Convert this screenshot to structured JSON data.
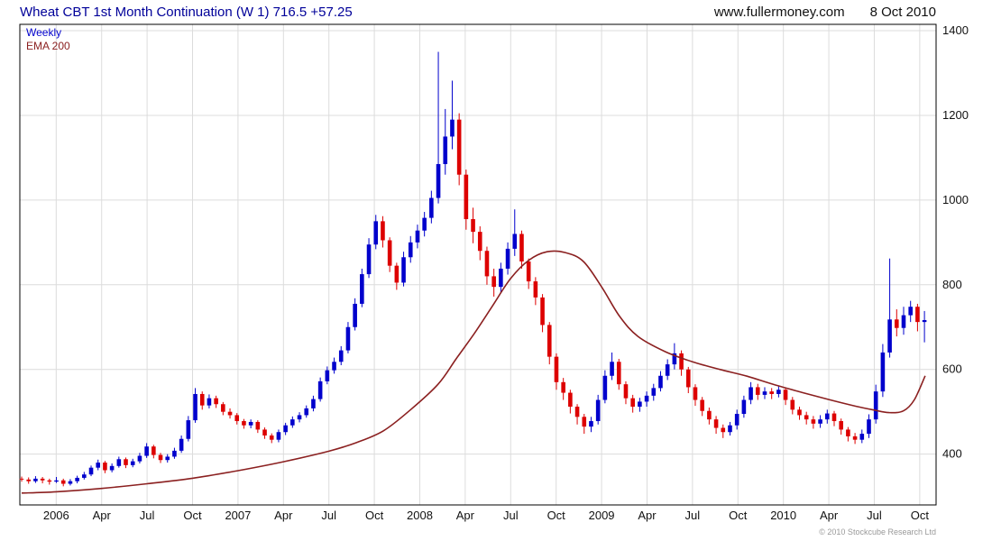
{
  "header": {
    "title": "Wheat CBT 1st Month Continuation (W 1) 716.5 +57.25",
    "website": "www.fullermoney.com",
    "date": "8 Oct 2010"
  },
  "legend": {
    "series1": "Weekly",
    "series2": "EMA 200"
  },
  "footer": {
    "copyright": "© 2010 Stockcube Research Ltd"
  },
  "colors": {
    "up": "#0000cc",
    "down": "#dd0000",
    "ema": "#8b2020",
    "grid": "#dcdcdc",
    "border": "#000000",
    "label": "#111111",
    "title": "#000099"
  },
  "chart_data": {
    "type": "candlestick",
    "title": "Wheat CBT 1st Month Continuation (W 1)",
    "instrument": "Wheat CBT 1st Month Continuation",
    "timeframe": "Weekly",
    "last_price": 716.5,
    "change": "+57.25",
    "legend_position": "top-left",
    "grid": true,
    "x_range": [
      2005.8,
      2010.84
    ],
    "y_range": [
      280,
      1415
    ],
    "y_ticks": [
      400,
      600,
      800,
      1000,
      1200,
      1400
    ],
    "x_ticks": [
      {
        "x": 2006.0,
        "label": "2006"
      },
      {
        "x": 2006.25,
        "label": "Apr"
      },
      {
        "x": 2006.5,
        "label": "Jul"
      },
      {
        "x": 2006.75,
        "label": "Oct"
      },
      {
        "x": 2007.0,
        "label": "2007"
      },
      {
        "x": 2007.25,
        "label": "Apr"
      },
      {
        "x": 2007.5,
        "label": "Jul"
      },
      {
        "x": 2007.75,
        "label": "Oct"
      },
      {
        "x": 2008.0,
        "label": "2008"
      },
      {
        "x": 2008.25,
        "label": "Apr"
      },
      {
        "x": 2008.5,
        "label": "Jul"
      },
      {
        "x": 2008.75,
        "label": "Oct"
      },
      {
        "x": 2009.0,
        "label": "2009"
      },
      {
        "x": 2009.25,
        "label": "Apr"
      },
      {
        "x": 2009.5,
        "label": "Jul"
      },
      {
        "x": 2009.75,
        "label": "Oct"
      },
      {
        "x": 2010.0,
        "label": "2010"
      },
      {
        "x": 2010.25,
        "label": "Apr"
      },
      {
        "x": 2010.5,
        "label": "Jul"
      },
      {
        "x": 2010.75,
        "label": "Oct"
      }
    ],
    "x_start": 2005.81,
    "x_step": 0.0382,
    "candles_ohlc": [
      [
        342,
        347,
        335,
        340
      ],
      [
        340,
        345,
        330,
        336
      ],
      [
        336,
        348,
        332,
        342
      ],
      [
        342,
        346,
        331,
        338
      ],
      [
        338,
        342,
        328,
        335
      ],
      [
        335,
        346,
        332,
        338
      ],
      [
        338,
        342,
        324,
        330
      ],
      [
        330,
        341,
        326,
        336
      ],
      [
        336,
        349,
        331,
        344
      ],
      [
        344,
        358,
        340,
        352
      ],
      [
        352,
        373,
        348,
        368
      ],
      [
        368,
        387,
        362,
        380
      ],
      [
        380,
        384,
        355,
        362
      ],
      [
        362,
        378,
        357,
        372
      ],
      [
        372,
        394,
        368,
        388
      ],
      [
        388,
        392,
        367,
        374
      ],
      [
        374,
        389,
        369,
        383
      ],
      [
        383,
        403,
        378,
        396
      ],
      [
        396,
        426,
        391,
        418
      ],
      [
        418,
        422,
        390,
        398
      ],
      [
        398,
        403,
        379,
        386
      ],
      [
        386,
        400,
        380,
        394
      ],
      [
        394,
        415,
        389,
        408
      ],
      [
        408,
        444,
        403,
        436
      ],
      [
        436,
        490,
        430,
        480
      ],
      [
        480,
        556,
        474,
        542
      ],
      [
        542,
        548,
        505,
        515
      ],
      [
        515,
        541,
        508,
        532
      ],
      [
        532,
        538,
        509,
        518
      ],
      [
        518,
        523,
        492,
        500
      ],
      [
        500,
        508,
        484,
        492
      ],
      [
        492,
        497,
        470,
        478
      ],
      [
        478,
        483,
        460,
        468
      ],
      [
        468,
        482,
        461,
        476
      ],
      [
        476,
        480,
        450,
        458
      ],
      [
        458,
        463,
        436,
        444
      ],
      [
        444,
        449,
        426,
        434
      ],
      [
        434,
        458,
        428,
        452
      ],
      [
        452,
        474,
        445,
        468
      ],
      [
        468,
        489,
        462,
        482
      ],
      [
        482,
        499,
        475,
        492
      ],
      [
        492,
        515,
        486,
        508
      ],
      [
        508,
        538,
        501,
        530
      ],
      [
        530,
        581,
        524,
        572
      ],
      [
        572,
        607,
        565,
        598
      ],
      [
        598,
        628,
        590,
        618
      ],
      [
        618,
        655,
        610,
        645
      ],
      [
        645,
        712,
        638,
        700
      ],
      [
        700,
        768,
        692,
        755
      ],
      [
        755,
        838,
        747,
        825
      ],
      [
        825,
        910,
        816,
        895
      ],
      [
        895,
        965,
        884,
        950
      ],
      [
        950,
        962,
        888,
        905
      ],
      [
        905,
        912,
        830,
        845
      ],
      [
        845,
        852,
        788,
        805
      ],
      [
        805,
        878,
        796,
        865
      ],
      [
        865,
        915,
        852,
        900
      ],
      [
        900,
        942,
        886,
        928
      ],
      [
        928,
        972,
        914,
        958
      ],
      [
        958,
        1022,
        945,
        1005
      ],
      [
        1005,
        1350,
        992,
        1085
      ],
      [
        1085,
        1215,
        1060,
        1150
      ],
      [
        1150,
        1282,
        1120,
        1190
      ],
      [
        1190,
        1205,
        1035,
        1060
      ],
      [
        1060,
        1072,
        930,
        955
      ],
      [
        955,
        982,
        898,
        925
      ],
      [
        925,
        938,
        858,
        880
      ],
      [
        880,
        890,
        800,
        820
      ],
      [
        820,
        838,
        772,
        795
      ],
      [
        795,
        852,
        782,
        838
      ],
      [
        838,
        900,
        824,
        885
      ],
      [
        885,
        978,
        868,
        920
      ],
      [
        920,
        928,
        838,
        855
      ],
      [
        855,
        862,
        790,
        808
      ],
      [
        808,
        818,
        752,
        770
      ],
      [
        770,
        778,
        688,
        705
      ],
      [
        705,
        712,
        612,
        630
      ],
      [
        630,
        638,
        552,
        570
      ],
      [
        570,
        580,
        528,
        545
      ],
      [
        545,
        552,
        496,
        512
      ],
      [
        512,
        518,
        470,
        488
      ],
      [
        488,
        495,
        448,
        465
      ],
      [
        465,
        488,
        452,
        478
      ],
      [
        478,
        540,
        470,
        528
      ],
      [
        528,
        598,
        520,
        585
      ],
      [
        585,
        640,
        575,
        618
      ],
      [
        618,
        625,
        552,
        565
      ],
      [
        565,
        572,
        518,
        532
      ],
      [
        532,
        540,
        498,
        512
      ],
      [
        512,
        533,
        500,
        524
      ],
      [
        524,
        548,
        512,
        538
      ],
      [
        538,
        566,
        526,
        556
      ],
      [
        556,
        596,
        548,
        585
      ],
      [
        585,
        624,
        575,
        612
      ],
      [
        612,
        662,
        600,
        638
      ],
      [
        638,
        645,
        585,
        600
      ],
      [
        600,
        606,
        544,
        558
      ],
      [
        558,
        565,
        514,
        528
      ],
      [
        528,
        535,
        490,
        502
      ],
      [
        502,
        510,
        470,
        482
      ],
      [
        482,
        490,
        448,
        462
      ],
      [
        462,
        470,
        438,
        452
      ],
      [
        452,
        476,
        444,
        468
      ],
      [
        468,
        505,
        458,
        495
      ],
      [
        495,
        538,
        486,
        528
      ],
      [
        528,
        570,
        518,
        558
      ],
      [
        558,
        566,
        528,
        540
      ],
      [
        540,
        558,
        530,
        548
      ],
      [
        548,
        556,
        530,
        542
      ],
      [
        542,
        562,
        534,
        552
      ],
      [
        552,
        558,
        516,
        528
      ],
      [
        528,
        535,
        494,
        505
      ],
      [
        505,
        512,
        481,
        492
      ],
      [
        492,
        500,
        470,
        482
      ],
      [
        482,
        490,
        460,
        472
      ],
      [
        472,
        492,
        462,
        482
      ],
      [
        482,
        505,
        472,
        496
      ],
      [
        496,
        502,
        466,
        478
      ],
      [
        478,
        484,
        446,
        458
      ],
      [
        458,
        464,
        430,
        442
      ],
      [
        442,
        450,
        424,
        434
      ],
      [
        434,
        458,
        426,
        448
      ],
      [
        448,
        494,
        438,
        482
      ],
      [
        482,
        564,
        472,
        548
      ],
      [
        548,
        660,
        535,
        640
      ],
      [
        640,
        862,
        628,
        718
      ],
      [
        718,
        742,
        678,
        698
      ],
      [
        698,
        748,
        682,
        728
      ],
      [
        728,
        762,
        712,
        748
      ],
      [
        748,
        755,
        690,
        712
      ],
      [
        712,
        738,
        664,
        716.5
      ]
    ],
    "ema200": [
      [
        2005.81,
        308
      ],
      [
        2006.0,
        311
      ],
      [
        2006.25,
        319
      ],
      [
        2006.5,
        330
      ],
      [
        2006.75,
        343
      ],
      [
        2007.0,
        361
      ],
      [
        2007.25,
        382
      ],
      [
        2007.5,
        407
      ],
      [
        2007.65,
        427
      ],
      [
        2007.8,
        455
      ],
      [
        2007.95,
        505
      ],
      [
        2008.1,
        565
      ],
      [
        2008.2,
        625
      ],
      [
        2008.3,
        685
      ],
      [
        2008.4,
        750
      ],
      [
        2008.5,
        815
      ],
      [
        2008.6,
        858
      ],
      [
        2008.7,
        878
      ],
      [
        2008.8,
        876
      ],
      [
        2008.9,
        855
      ],
      [
        2009.0,
        795
      ],
      [
        2009.1,
        725
      ],
      [
        2009.2,
        678
      ],
      [
        2009.35,
        642
      ],
      [
        2009.5,
        618
      ],
      [
        2009.65,
        600
      ],
      [
        2009.8,
        584
      ],
      [
        2009.95,
        564
      ],
      [
        2010.1,
        546
      ],
      [
        2010.25,
        529
      ],
      [
        2010.4,
        513
      ],
      [
        2010.5,
        504
      ],
      [
        2010.58,
        498
      ],
      [
        2010.66,
        502
      ],
      [
        2010.72,
        528
      ],
      [
        2010.78,
        585
      ]
    ]
  }
}
